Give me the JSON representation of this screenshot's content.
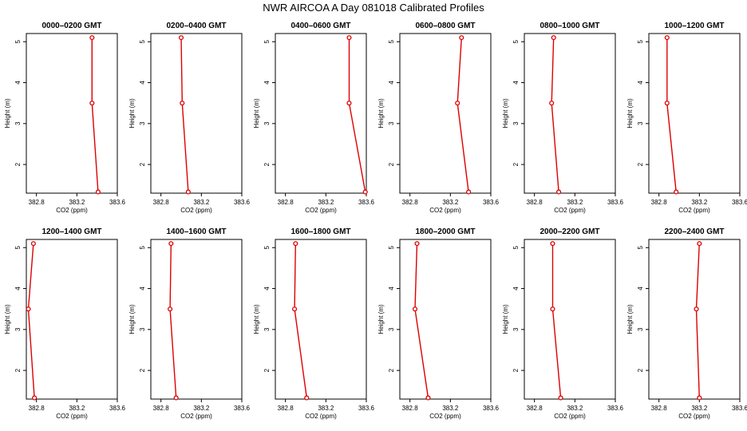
{
  "figure": {
    "title": "NWR AIRCOA A  Day 081018  Calibrated Profiles"
  },
  "colors": {
    "series": "#dd0000",
    "axis": "#000000",
    "background": "#ffffff"
  },
  "chart_data": [
    {
      "type": "line",
      "title": "0000–0200 GMT",
      "xlabel": "CO2 (ppm)",
      "ylabel": "Height (m)",
      "xlim": [
        382.7,
        383.6
      ],
      "ylim": [
        1.3,
        5.2
      ],
      "xticks": [
        "382.8",
        "383.2",
        "383.6"
      ],
      "xtick_values": [
        382.8,
        383.2,
        383.6
      ],
      "yticks": [
        "2",
        "3",
        "4",
        "5"
      ],
      "ytick_values": [
        2,
        3,
        4,
        5
      ],
      "x": [
        383.35,
        383.35,
        383.41
      ],
      "y": [
        5.1,
        3.5,
        1.33
      ]
    },
    {
      "type": "line",
      "title": "0200–0400 GMT",
      "xlabel": "CO2 (ppm)",
      "ylabel": "Height (m)",
      "xlim": [
        382.7,
        383.6
      ],
      "ylim": [
        1.3,
        5.2
      ],
      "xticks": [
        "382.8",
        "383.2",
        "383.6"
      ],
      "xtick_values": [
        382.8,
        383.2,
        383.6
      ],
      "yticks": [
        "2",
        "3",
        "4",
        "5"
      ],
      "ytick_values": [
        2,
        3,
        4,
        5
      ],
      "x": [
        383.0,
        383.01,
        383.07
      ],
      "y": [
        5.1,
        3.5,
        1.33
      ]
    },
    {
      "type": "line",
      "title": "0400–0600 GMT",
      "xlabel": "CO2 (ppm)",
      "ylabel": "Height (m)",
      "xlim": [
        382.7,
        383.6
      ],
      "ylim": [
        1.3,
        5.2
      ],
      "xticks": [
        "382.8",
        "383.2",
        "383.6"
      ],
      "xtick_values": [
        382.8,
        383.2,
        383.6
      ],
      "yticks": [
        "2",
        "3",
        "4",
        "5"
      ],
      "ytick_values": [
        2,
        3,
        4,
        5
      ],
      "x": [
        383.43,
        383.43,
        383.59
      ],
      "y": [
        5.1,
        3.5,
        1.33
      ]
    },
    {
      "type": "line",
      "title": "0600–0800 GMT",
      "xlabel": "CO2 (ppm)",
      "ylabel": "Height (m)",
      "xlim": [
        382.7,
        383.6
      ],
      "ylim": [
        1.3,
        5.2
      ],
      "xticks": [
        "382.8",
        "383.2",
        "383.6"
      ],
      "xtick_values": [
        382.8,
        383.2,
        383.6
      ],
      "yticks": [
        "2",
        "3",
        "4",
        "5"
      ],
      "ytick_values": [
        2,
        3,
        4,
        5
      ],
      "x": [
        383.31,
        383.27,
        383.38
      ],
      "y": [
        5.1,
        3.5,
        1.33
      ]
    },
    {
      "type": "line",
      "title": "0800–1000 GMT",
      "xlabel": "CO2 (ppm)",
      "ylabel": "Height (m)",
      "xlim": [
        382.7,
        383.6
      ],
      "ylim": [
        1.3,
        5.2
      ],
      "xticks": [
        "382.8",
        "383.2",
        "383.6"
      ],
      "xtick_values": [
        382.8,
        383.2,
        383.6
      ],
      "yticks": [
        "2",
        "3",
        "4",
        "5"
      ],
      "ytick_values": [
        2,
        3,
        4,
        5
      ],
      "x": [
        382.99,
        382.97,
        383.04
      ],
      "y": [
        5.1,
        3.5,
        1.33
      ]
    },
    {
      "type": "line",
      "title": "1000–1200 GMT",
      "xlabel": "CO2 (ppm)",
      "ylabel": "Height (m)",
      "xlim": [
        382.7,
        383.6
      ],
      "ylim": [
        1.3,
        5.2
      ],
      "xticks": [
        "382.8",
        "383.2",
        "383.6"
      ],
      "xtick_values": [
        382.8,
        383.2,
        383.6
      ],
      "yticks": [
        "2",
        "3",
        "4",
        "5"
      ],
      "ytick_values": [
        2,
        3,
        4,
        5
      ],
      "x": [
        382.88,
        382.88,
        382.97
      ],
      "y": [
        5.1,
        3.5,
        1.33
      ]
    },
    {
      "type": "line",
      "title": "1200–1400 GMT",
      "xlabel": "CO2 (ppm)",
      "ylabel": "Height (m)",
      "xlim": [
        382.7,
        383.6
      ],
      "ylim": [
        1.3,
        5.2
      ],
      "xticks": [
        "382.8",
        "383.2",
        "383.6"
      ],
      "xtick_values": [
        382.8,
        383.2,
        383.6
      ],
      "yticks": [
        "2",
        "3",
        "4",
        "5"
      ],
      "ytick_values": [
        2,
        3,
        4,
        5
      ],
      "x": [
        382.77,
        382.72,
        382.78
      ],
      "y": [
        5.1,
        3.5,
        1.33
      ]
    },
    {
      "type": "line",
      "title": "1400–1600 GMT",
      "xlabel": "CO2 (ppm)",
      "ylabel": "Height (m)",
      "xlim": [
        382.7,
        383.6
      ],
      "ylim": [
        1.3,
        5.2
      ],
      "xticks": [
        "382.8",
        "383.2",
        "383.6"
      ],
      "xtick_values": [
        382.8,
        383.2,
        383.6
      ],
      "yticks": [
        "2",
        "3",
        "4",
        "5"
      ],
      "ytick_values": [
        2,
        3,
        4,
        5
      ],
      "x": [
        382.9,
        382.89,
        382.95
      ],
      "y": [
        5.1,
        3.5,
        1.33
      ]
    },
    {
      "type": "line",
      "title": "1600–1800 GMT",
      "xlabel": "CO2 (ppm)",
      "ylabel": "Height (m)",
      "xlim": [
        382.7,
        383.6
      ],
      "ylim": [
        1.3,
        5.2
      ],
      "xticks": [
        "382.8",
        "383.2",
        "383.6"
      ],
      "xtick_values": [
        382.8,
        383.2,
        383.6
      ],
      "yticks": [
        "2",
        "3",
        "4",
        "5"
      ],
      "ytick_values": [
        2,
        3,
        4,
        5
      ],
      "x": [
        382.9,
        382.89,
        383.01
      ],
      "y": [
        5.1,
        3.5,
        1.33
      ]
    },
    {
      "type": "line",
      "title": "1800–2000 GMT",
      "xlabel": "CO2 (ppm)",
      "ylabel": "Height (m)",
      "xlim": [
        382.7,
        383.6
      ],
      "ylim": [
        1.3,
        5.2
      ],
      "xticks": [
        "382.8",
        "383.2",
        "383.6"
      ],
      "xtick_values": [
        382.8,
        383.2,
        383.6
      ],
      "yticks": [
        "2",
        "3",
        "4",
        "5"
      ],
      "ytick_values": [
        2,
        3,
        4,
        5
      ],
      "x": [
        382.87,
        382.85,
        382.98
      ],
      "y": [
        5.1,
        3.5,
        1.33
      ]
    },
    {
      "type": "line",
      "title": "2000–2200 GMT",
      "xlabel": "CO2 (ppm)",
      "ylabel": "Height (m)",
      "xlim": [
        382.7,
        383.6
      ],
      "ylim": [
        1.3,
        5.2
      ],
      "xticks": [
        "382.8",
        "383.2",
        "383.6"
      ],
      "xtick_values": [
        382.8,
        383.2,
        383.6
      ],
      "yticks": [
        "2",
        "3",
        "4",
        "5"
      ],
      "ytick_values": [
        2,
        3,
        4,
        5
      ],
      "x": [
        382.98,
        382.98,
        383.06
      ],
      "y": [
        5.1,
        3.5,
        1.33
      ]
    },
    {
      "type": "line",
      "title": "2200–2400 GMT",
      "xlabel": "CO2 (ppm)",
      "ylabel": "Height (m)",
      "xlim": [
        382.7,
        383.6
      ],
      "ylim": [
        1.3,
        5.2
      ],
      "xticks": [
        "382.8",
        "383.2",
        "383.6"
      ],
      "xtick_values": [
        382.8,
        383.2,
        383.6
      ],
      "yticks": [
        "2",
        "3",
        "4",
        "5"
      ],
      "ytick_values": [
        2,
        3,
        4,
        5
      ],
      "x": [
        383.2,
        383.17,
        383.2
      ],
      "y": [
        5.1,
        3.5,
        1.33
      ]
    }
  ]
}
